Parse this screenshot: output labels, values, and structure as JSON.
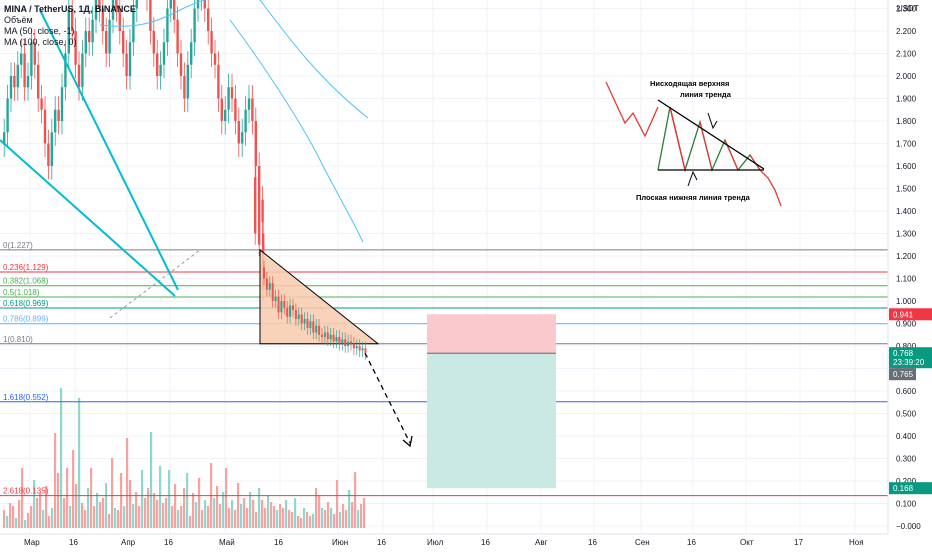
{
  "legend": {
    "symbol": "MINA / TetherUS, 1Д, BINANCE",
    "volume": "Объём",
    "ma50": "MA (50, close, -1)",
    "ma100": "MA (100, close, 0)"
  },
  "price_axis": {
    "currency": "USDT",
    "ticks": [
      "2.300",
      "2.200",
      "2.100",
      "2.000",
      "1.900",
      "1.800",
      "1.700",
      "1.600",
      "1.500",
      "1.400",
      "1.300",
      "1.200",
      "1.100",
      "1.000",
      "0.900",
      "0.800",
      "0.700",
      "0.600",
      "0.500",
      "0.400",
      "0.300",
      "0.200",
      "0.100",
      "−0.000"
    ],
    "tick_values": [
      2.3,
      2.2,
      2.1,
      2.0,
      1.9,
      1.8,
      1.7,
      1.6,
      1.5,
      1.4,
      1.3,
      1.2,
      1.1,
      1.0,
      0.9,
      0.8,
      0.7,
      0.6,
      0.5,
      0.4,
      0.3,
      0.2,
      0.1,
      0.0
    ]
  },
  "time_axis": {
    "labels": [
      "Мар",
      "16",
      "Апр",
      "16",
      "Май",
      "16",
      "Июн",
      "16",
      "Июл",
      "16",
      "Авг",
      "16",
      "Сен",
      "16",
      "Окт",
      "17",
      "Ноя"
    ]
  },
  "badges": {
    "stop": {
      "text": "0.941",
      "value": 0.941,
      "color": "#f23645"
    },
    "current": {
      "text": "0.768",
      "value": 0.768,
      "color": "#089981"
    },
    "countdown": {
      "text": "23:39:20"
    },
    "last": {
      "text": "0.765",
      "value": 0.765,
      "color": "#6a6d78"
    },
    "target": {
      "text": "0.168",
      "value": 0.168,
      "color": "#089981"
    }
  },
  "fib_levels": [
    {
      "label": "0(1.227)",
      "value": 1.227,
      "color": "#787b86"
    },
    {
      "label": "0.236(1.129)",
      "value": 1.129,
      "color": "#f23645"
    },
    {
      "label": "0.382(1.068)",
      "value": 1.068,
      "color": "#4caf50"
    },
    {
      "label": "0.5(1.018)",
      "value": 1.018,
      "color": "#4caf50"
    },
    {
      "label": "0.618(0.969)",
      "value": 0.969,
      "color": "#089981"
    },
    {
      "label": "0.786(0.899)",
      "value": 0.899,
      "color": "#64b5f6"
    },
    {
      "label": "1(0.810)",
      "value": 0.81,
      "color": "#787b86"
    },
    {
      "label": "1.618(0.552)",
      "value": 0.552,
      "color": "#2962ff"
    },
    {
      "label": "2.618(0.135)",
      "value": 0.135,
      "color": "#f23645"
    }
  ],
  "annotations": {
    "upper_line_1": "Нисходящая верхняя",
    "upper_line_2": "линия тренда",
    "lower_line": "Плоская нижняя линия тренда"
  },
  "colors": {
    "up": "#26a69a",
    "down": "#ef5350",
    "ma": "#4fc3f7",
    "trend": "#00bcd4",
    "triangle_fill": "#f8cbad"
  },
  "chart_data": {
    "type": "candlestick",
    "title": "MINA / TetherUS, 1Д, BINANCE",
    "ylabel": "USDT",
    "ylim": [
      0,
      2.35
    ],
    "x_range": [
      "Mar",
      "Nov"
    ],
    "triangle": {
      "top": 1.227,
      "base": 0.81,
      "start": "May 11",
      "apex": "Jun 14"
    },
    "trade": {
      "entry": 0.768,
      "stop": 0.941,
      "target": 0.168,
      "start": "Jul 1",
      "end": "Aug 1"
    },
    "price_path_closes": [
      1.8,
      1.95,
      2.1,
      2.05,
      2.2,
      2.25,
      2.35,
      2.3,
      2.2,
      2.1,
      2.0,
      1.9,
      1.7,
      1.5,
      1.3,
      1.1,
      1.05,
      1.0,
      0.98,
      0.95,
      0.9,
      0.88,
      0.85,
      0.82,
      0.8,
      0.78,
      0.77
    ]
  }
}
